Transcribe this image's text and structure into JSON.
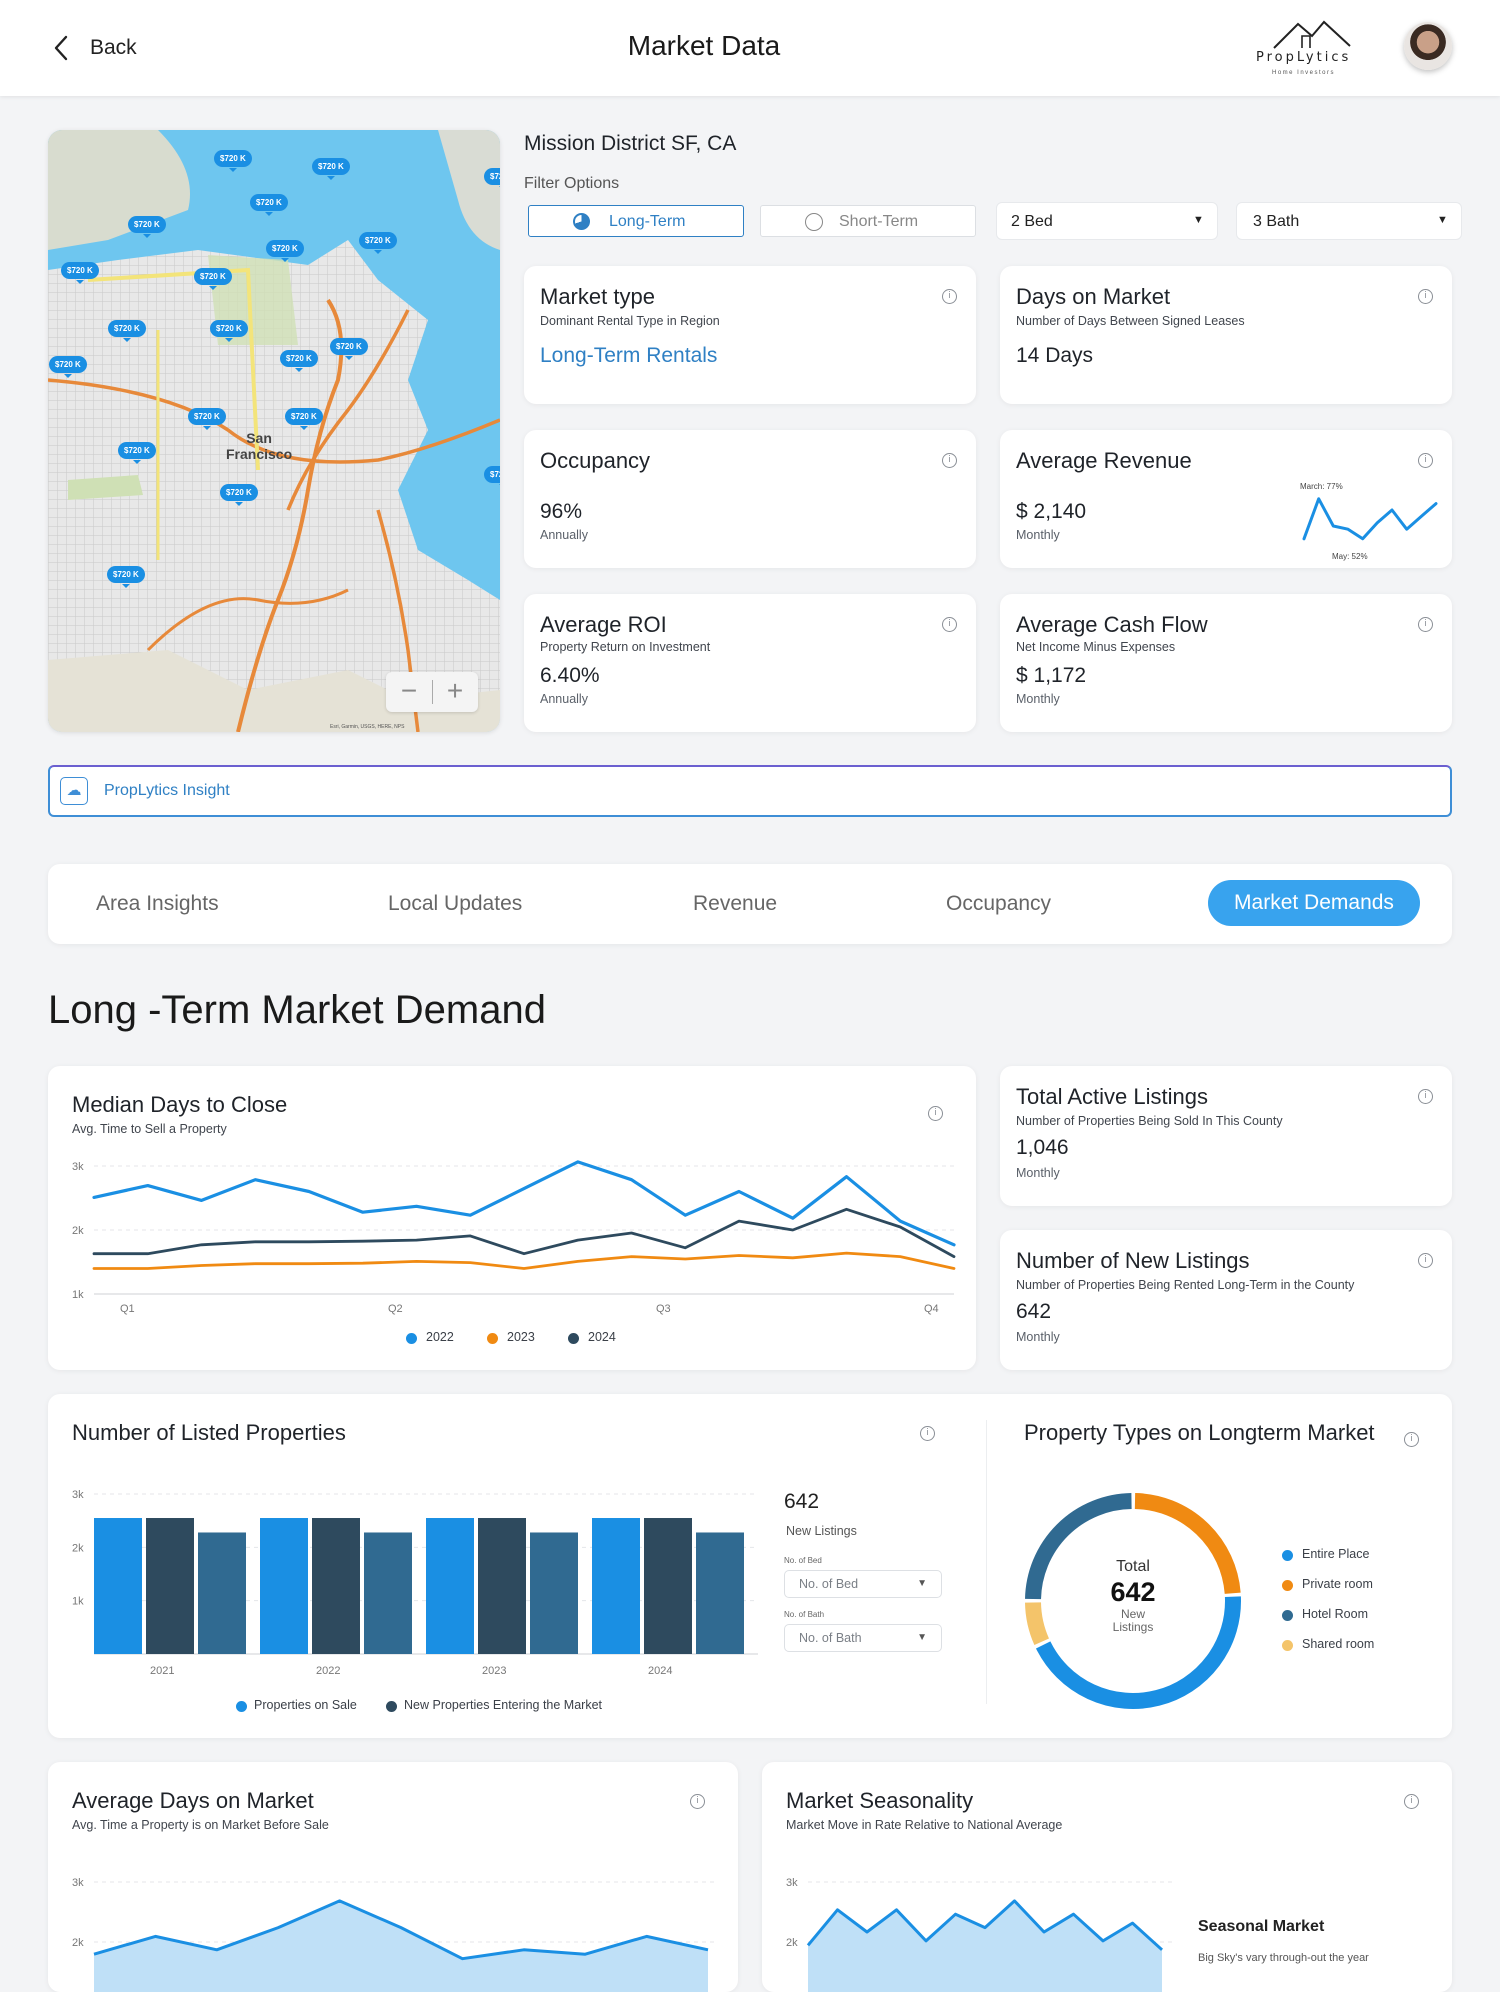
{
  "header": {
    "back_label": "Back",
    "title": "Market Data",
    "logo_name": "PropLytics",
    "logo_tagline": "Home Investors"
  },
  "location": {
    "name": "Mission District SF, CA",
    "filter_label": "Filter Options"
  },
  "filters": {
    "long_term": "Long-Term",
    "short_term": "Short-Term",
    "beds": "2 Bed",
    "baths": "3 Bath"
  },
  "map": {
    "pin_label": "$720 K",
    "city_line1": "San",
    "city_line2": "Francisco",
    "attribution": "Esri, Garmin, USGS, HERE, NPS"
  },
  "cards": {
    "market_type": {
      "title": "Market type",
      "subtitle": "Dominant Rental Type in Region",
      "value": "Long-Term Rentals"
    },
    "days_on_market": {
      "title": "Days on Market",
      "subtitle": "Number of Days Between Signed Leases",
      "value": "14 Days"
    },
    "occupancy": {
      "title": "Occupancy",
      "value": "96%",
      "period": "Annually"
    },
    "avg_revenue": {
      "title": "Average Revenue",
      "value": "$ 2,140",
      "period": "Monthly",
      "peak_label": "March: 77%",
      "low_label": "May: 52%"
    },
    "avg_roi": {
      "title": "Average ROI",
      "subtitle": "Property Return on Investment",
      "value": "6.40%",
      "period": "Annually"
    },
    "avg_cash_flow": {
      "title": "Average Cash Flow",
      "subtitle": "Net Income Minus Expenses",
      "value": "$ 1,172",
      "period": "Monthly"
    }
  },
  "insight_bar": {
    "label": "PropLytics Insight"
  },
  "tabs": [
    {
      "label": "Area Insights"
    },
    {
      "label": "Local Updates"
    },
    {
      "label": "Revenue"
    },
    {
      "label": "Occupancy"
    },
    {
      "label": "Market Demands"
    }
  ],
  "section_title": "Long -Term Market Demand",
  "median_days": {
    "title": "Median Days to Close",
    "subtitle": "Avg. Time to Sell a Property"
  },
  "total_active": {
    "title": "Total Active Listings",
    "subtitle": "Number of Properties Being Sold In This County",
    "value": "1,046",
    "period": "Monthly"
  },
  "new_listings": {
    "title": "Number of New Listings",
    "subtitle": "Number of Properties Being Rented Long-Term in the County",
    "value": "642",
    "period": "Monthly"
  },
  "listed_props": {
    "title": "Number of Listed Properties",
    "side_value": "642",
    "side_label": "New Listings",
    "bed_label": "No. of Bed",
    "bed_placeholder": "No. of Bed",
    "bath_label": "No. of Bath",
    "bath_placeholder": "No. of Bath"
  },
  "property_types": {
    "title": "Property Types on Longterm Market",
    "center_top": "Total",
    "center_value": "642",
    "center_bottom1": "New",
    "center_bottom2": "Listings"
  },
  "avg_days": {
    "title": "Average Days on Market",
    "subtitle": "Avg. Time a Property is on Market Before Sale"
  },
  "seasonality": {
    "title": "Market Seasonality",
    "subtitle": "Market Move in Rate Relative to National Average",
    "side_title": "Seasonal Market",
    "side_text": "Big Sky's vary through-out the year"
  },
  "colors": {
    "blue": "#1a8fe3",
    "orange": "#f08a12",
    "navy": "#2e4a5e",
    "steel": "#306a91",
    "sand": "#f4c46a",
    "accent": "#2f80c4"
  },
  "chart_data": [
    {
      "type": "line",
      "ylabel": "",
      "y_ticks": [
        "3k",
        "2k",
        "1k"
      ],
      "ylim": [
        1000,
        3000
      ],
      "x_ticks": [
        "Q1",
        "Q2",
        "Q3",
        "Q4"
      ],
      "x": [
        0,
        1,
        2,
        3,
        4,
        5,
        6,
        7,
        8,
        9,
        10,
        11,
        12,
        13,
        14,
        15,
        16
      ],
      "series": [
        {
          "name": "2022",
          "values": [
            2500,
            2700,
            2450,
            2800,
            2600,
            2250,
            2350,
            2200,
            2650,
            3100,
            2800,
            2200,
            2600,
            2150,
            2850,
            2100,
            1700
          ]
        },
        {
          "name": "2023",
          "values": [
            1300,
            1300,
            1350,
            1380,
            1380,
            1390,
            1420,
            1400,
            1300,
            1420,
            1500,
            1460,
            1520,
            1480,
            1560,
            1500,
            1300
          ]
        },
        {
          "name": "2024",
          "values": [
            1550,
            1550,
            1700,
            1750,
            1750,
            1760,
            1780,
            1850,
            1550,
            1780,
            1900,
            1650,
            2100,
            1950,
            2300,
            2000,
            1500
          ]
        }
      ]
    },
    {
      "type": "bar",
      "y_ticks": [
        "3k",
        "2k",
        "1k"
      ],
      "ylim": [
        0,
        3000
      ],
      "categories": [
        "2021",
        "2022",
        "2023",
        "2024"
      ],
      "series": [
        {
          "name": "Properties on Sale",
          "values": [
            2350,
            2350,
            2350,
            2350
          ]
        },
        {
          "name": "New Properties Entering the Market",
          "values": [
            2350,
            2350,
            2350,
            2350
          ]
        },
        {
          "name": "",
          "values": [
            2100,
            2100,
            2100,
            2100
          ]
        }
      ]
    },
    {
      "type": "pie",
      "labels": [
        "Entire Place",
        "Private room",
        "Hotel Room",
        "Shared room"
      ],
      "values": [
        44,
        24,
        25,
        7
      ]
    },
    {
      "type": "area",
      "y_ticks": [
        "3k",
        "2k"
      ],
      "values": [
        1900,
        2100,
        1950,
        2200,
        2500,
        2200,
        1850,
        1950,
        1900,
        2100,
        1950
      ]
    },
    {
      "type": "area",
      "y_ticks": [
        "3k",
        "2k"
      ],
      "values": [
        2000,
        2400,
        2150,
        2400,
        2050,
        2350,
        2200,
        2500,
        2150,
        2350,
        2050,
        2250,
        1950
      ]
    },
    {
      "type": "line",
      "title": "",
      "values": [
        52,
        77,
        60,
        58,
        52,
        62,
        70,
        58,
        66,
        74
      ]
    }
  ]
}
